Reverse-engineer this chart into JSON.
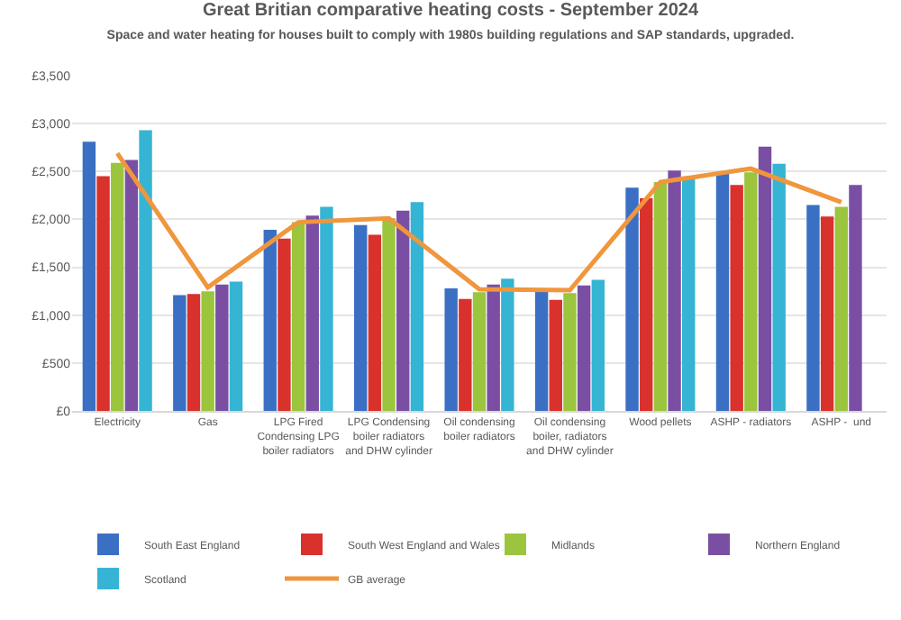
{
  "chart_data": {
    "type": "bar",
    "title": "Great Britian comparative heating costs - September 2024",
    "subtitle": "Space and water heating for houses built to comply with 1980s building regulations and SAP standards, upgraded.",
    "categories": [
      "Electricity",
      "Gas",
      "LPG Fired Condensing LPG boiler radiators",
      "LPG Condensing boiler radiators and DHW cylinder",
      "Oil condensing boiler radiators",
      "Oil condensing boiler, radiators and DHW cylinder",
      "Wood pellets",
      "ASHP - radiators",
      "ASHP -  und"
    ],
    "series": [
      {
        "name": "South East England",
        "color": "#3a6fc4",
        "values": [
          2810,
          1210,
          1890,
          1940,
          1280,
          1260,
          2330,
          2490,
          2150
        ]
      },
      {
        "name": "South West England and Wales",
        "color": "#d9312b",
        "values": [
          2450,
          1220,
          1800,
          1840,
          1170,
          1160,
          2220,
          2360,
          2030
        ]
      },
      {
        "name": "Midlands",
        "color": "#9bc53d",
        "values": [
          2590,
          1250,
          1970,
          2010,
          1240,
          1230,
          2390,
          2490,
          2130
        ]
      },
      {
        "name": "Northern England",
        "color": "#7a4fa3",
        "values": [
          2620,
          1320,
          2040,
          2090,
          1320,
          1310,
          2510,
          2760,
          2360
        ]
      },
      {
        "name": "Scotland",
        "color": "#35b4d4",
        "values": [
          2930,
          1350,
          2130,
          2180,
          1380,
          1370,
          2430,
          2580,
          null
        ]
      },
      {
        "name": "GB average",
        "color": "#f0963c",
        "type": "line",
        "values": [
          2690,
          1290,
          1970,
          2010,
          1270,
          1260,
          2390,
          2530,
          2180
        ]
      }
    ],
    "ylim": [
      0,
      3500
    ],
    "yticks": [
      {
        "value": 0,
        "label": "£0"
      },
      {
        "value": 500,
        "label": "£500"
      },
      {
        "value": 1000,
        "label": "£1,000"
      },
      {
        "value": 1500,
        "label": "£1,500"
      },
      {
        "value": 2000,
        "label": "£2,000"
      },
      {
        "value": 2500,
        "label": "£2,500"
      },
      {
        "value": 3000,
        "label": "£3,000"
      },
      {
        "value": 3500,
        "label": "£3,500"
      }
    ],
    "grid": "y",
    "legend": "bottom"
  }
}
